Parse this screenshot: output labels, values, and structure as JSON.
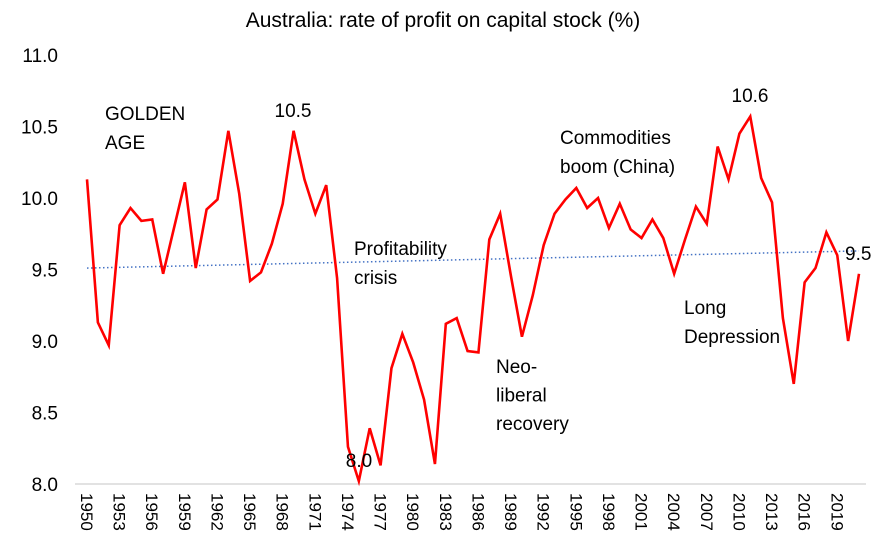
{
  "chart_data": {
    "type": "line",
    "title": "Australia: rate of profit on capital stock (%)",
    "xlabel": "",
    "ylabel": "",
    "ylim": [
      8.0,
      11.0
    ],
    "yticks": [
      "8.0",
      "8.5",
      "9.0",
      "9.5",
      "10.0",
      "10.5",
      "11.0"
    ],
    "xticks": [
      "1950",
      "1953",
      "1956",
      "1959",
      "1962",
      "1965",
      "1968",
      "1971",
      "1974",
      "1977",
      "1980",
      "1983",
      "1986",
      "1989",
      "1992",
      "1995",
      "1998",
      "2001",
      "2004",
      "2007",
      "2010",
      "2013",
      "2016",
      "2019"
    ],
    "grid": false,
    "series": [
      {
        "color": "#ff0000",
        "x": [
          1950,
          1951,
          1952,
          1953,
          1954,
          1955,
          1956,
          1957,
          1958,
          1959,
          1960,
          1961,
          1962,
          1963,
          1964,
          1965,
          1966,
          1967,
          1968,
          1969,
          1970,
          1971,
          1972,
          1973,
          1974,
          1975,
          1976,
          1977,
          1978,
          1979,
          1980,
          1981,
          1982,
          1983,
          1984,
          1985,
          1986,
          1987,
          1988,
          1989,
          1990,
          1991,
          1992,
          1993,
          1994,
          1995,
          1996,
          1997,
          1998,
          1999,
          2000,
          2001,
          2002,
          2003,
          2004,
          2005,
          2006,
          2007,
          2008,
          2009,
          2010,
          2011,
          2012,
          2013,
          2014,
          2015,
          2016,
          2017,
          2018,
          2019,
          2020,
          2021
        ],
        "values": [
          10.13,
          9.13,
          8.97,
          9.81,
          9.93,
          9.84,
          9.85,
          9.47,
          9.79,
          10.11,
          9.51,
          9.92,
          9.99,
          10.47,
          10.03,
          9.42,
          9.48,
          9.68,
          9.96,
          10.47,
          10.13,
          9.89,
          10.09,
          9.44,
          8.26,
          8.02,
          8.39,
          8.13,
          8.81,
          9.05,
          8.85,
          8.59,
          8.14,
          9.12,
          9.16,
          8.93,
          8.92,
          9.71,
          9.89,
          9.45,
          9.03,
          9.32,
          9.67,
          9.89,
          9.99,
          10.07,
          9.93,
          10.0,
          9.79,
          9.96,
          9.78,
          9.72,
          9.85,
          9.72,
          9.47,
          9.71,
          9.94,
          9.82,
          10.36,
          10.13,
          10.45,
          10.57,
          10.14,
          9.97,
          9.16,
          8.7,
          9.41,
          9.51,
          9.76,
          9.6,
          9.0,
          9.47
        ]
      }
    ],
    "trendline": {
      "type": "linear",
      "style": "dotted",
      "color": "#4472c4",
      "start": [
        1950,
        9.51
      ],
      "end": [
        2021,
        9.63
      ]
    },
    "annotations": [
      {
        "lines": [
          "GOLDEN",
          "AGE"
        ]
      },
      {
        "lines": [
          "10.5"
        ]
      },
      {
        "lines": [
          "Profitability",
          "crisis"
        ]
      },
      {
        "lines": [
          "8.0"
        ]
      },
      {
        "lines": [
          "Neo-",
          "liberal",
          "recovery"
        ]
      },
      {
        "lines": [
          "Commodities",
          "boom (China)"
        ]
      },
      {
        "lines": [
          "10.6"
        ]
      },
      {
        "lines": [
          "Long",
          "Depression"
        ]
      },
      {
        "lines": [
          "9.5"
        ]
      }
    ]
  }
}
